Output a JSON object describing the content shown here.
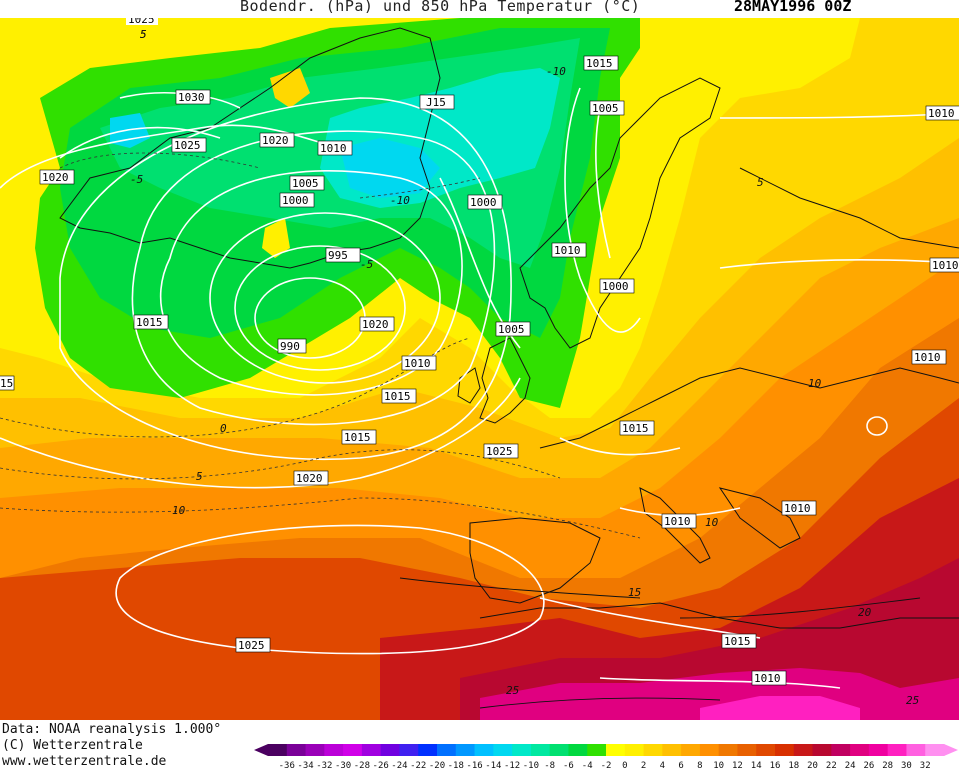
{
  "header": {
    "title": "Bodendr. (hPa) und 850 hPa Temperatur (°C)",
    "date": "28MAY1996 00Z"
  },
  "footer": {
    "data_source": "Data: NOAA reanalysis 1.000°",
    "copyright": "(C) Wetterzentrale",
    "website": "www.wetterzentrale.de"
  },
  "legend": {
    "ticks": [
      "-36",
      "-34",
      "-32",
      "-30",
      "-28",
      "-26",
      "-24",
      "-22",
      "-20",
      "-18",
      "-16",
      "-14",
      "-12",
      "-10",
      "-8",
      "-6",
      "-4",
      "-2",
      "0",
      "2",
      "4",
      "6",
      "8",
      "10",
      "12",
      "14",
      "16",
      "18",
      "20",
      "22",
      "24",
      "26",
      "28",
      "30",
      "32"
    ],
    "colors": [
      "#4b0060",
      "#7a0098",
      "#9a00b8",
      "#bb00d8",
      "#d000e8",
      "#a000e0",
      "#7000e0",
      "#4020f0",
      "#0030ff",
      "#0070ff",
      "#0098ff",
      "#00c0ff",
      "#00d8f0",
      "#00e8c8",
      "#00e8a0",
      "#00e070",
      "#00d840",
      "#30e000",
      "#ffff00",
      "#fff000",
      "#ffd800",
      "#ffc000",
      "#ffa800",
      "#ff9000",
      "#f07800",
      "#e86000",
      "#e04800",
      "#d83000",
      "#c81818",
      "#b80830",
      "#c00060",
      "#e00080",
      "#f000a0",
      "#ff20c0",
      "#ff60e0",
      "#ff90f0"
    ]
  },
  "isobar_labels": [
    "1025",
    "1030",
    "1025",
    "1020",
    "1020",
    "1010",
    "J15",
    "1005",
    "1000",
    "1015",
    "1005",
    "1000",
    "995",
    "1010",
    "1015",
    "1000",
    "990",
    "1020",
    "1005",
    "1010",
    "1015",
    "1015",
    "1025",
    "1020",
    "1010",
    "1010",
    "1010",
    "1025",
    "1015",
    "1010",
    "1015",
    "1010",
    "1010",
    "15"
  ],
  "temperature_labels": [
    "5",
    "5",
    "-5",
    "-10",
    "-10",
    "-5",
    "5",
    "0",
    "5",
    "10",
    "10",
    "10",
    "15",
    "20",
    "25",
    "25"
  ]
}
